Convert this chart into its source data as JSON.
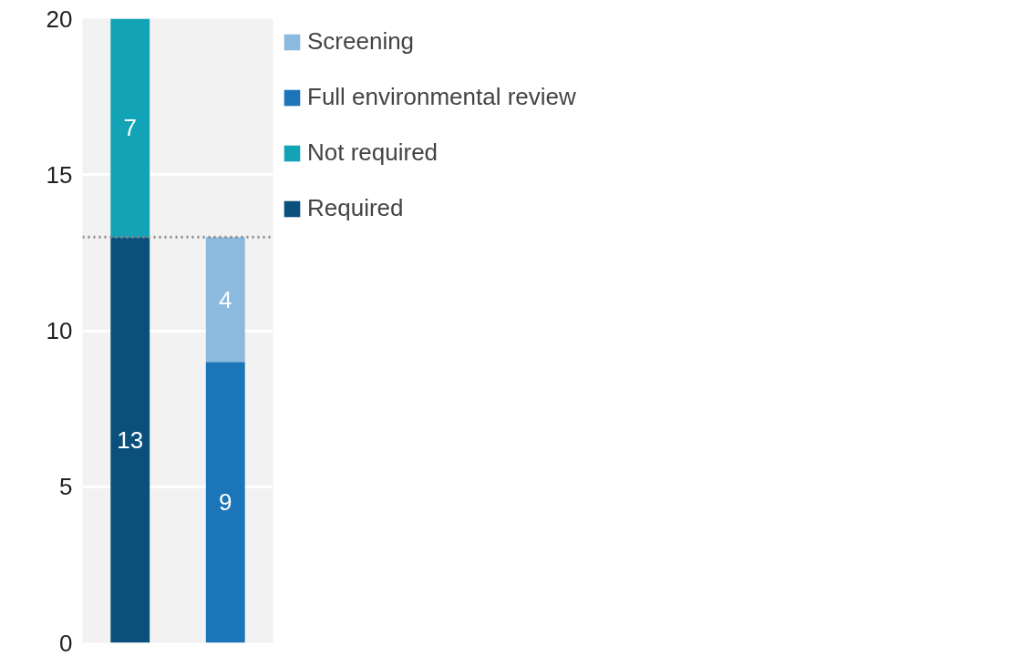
{
  "chart_data": {
    "type": "bar",
    "stacked": true,
    "categories": [
      null,
      null
    ],
    "series": [
      {
        "name": "Required",
        "color": "#0b4f7c",
        "values": [
          13,
          null
        ]
      },
      {
        "name": "Not required",
        "color": "#12a4b6",
        "values": [
          7,
          null
        ]
      },
      {
        "name": "Full environmental review",
        "color": "#1b75b8",
        "values": [
          null,
          9
        ]
      },
      {
        "name": "Screening",
        "color": "#8cb9de",
        "values": [
          null,
          4
        ]
      }
    ],
    "ylim": [
      0,
      20
    ],
    "yticks": [
      0,
      5,
      10,
      15,
      20
    ],
    "grid": "y",
    "legend": "right",
    "data_labels": true,
    "ref_lines": [
      {
        "axis": "y",
        "value": 13,
        "color": "#888888",
        "line_style": "dotted"
      }
    ]
  }
}
